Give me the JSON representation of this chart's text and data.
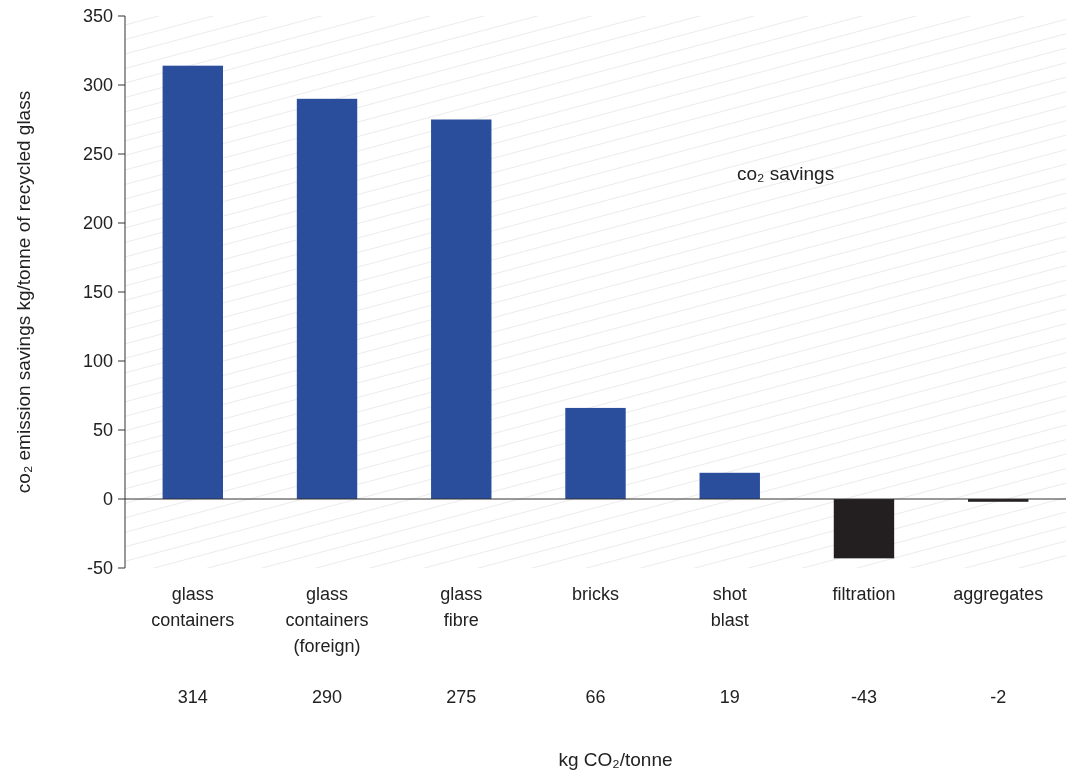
{
  "chart_data": {
    "type": "bar",
    "ylabel": "co₂ emission savings kg/tonne of recycled glass",
    "xlabel": "kg CO₂/tonne",
    "annotations": [
      "co₂ savings"
    ],
    "categories": [
      "glass containers",
      "glass containers (foreign)",
      "glass fibre",
      "bricks",
      "shot blast",
      "filtration",
      "aggregates"
    ],
    "values": [
      314,
      290,
      275,
      66,
      19,
      -43,
      -2
    ],
    "colors": [
      "#2a4d9c",
      "#2a4d9c",
      "#2a4d9c",
      "#2a4d9c",
      "#2a4d9c",
      "#231f20",
      "#231f20"
    ],
    "ylim": [
      -50,
      350
    ],
    "yticks": [
      -50,
      0,
      50,
      100,
      150,
      200,
      250,
      300,
      350
    ],
    "data_labels": true
  }
}
